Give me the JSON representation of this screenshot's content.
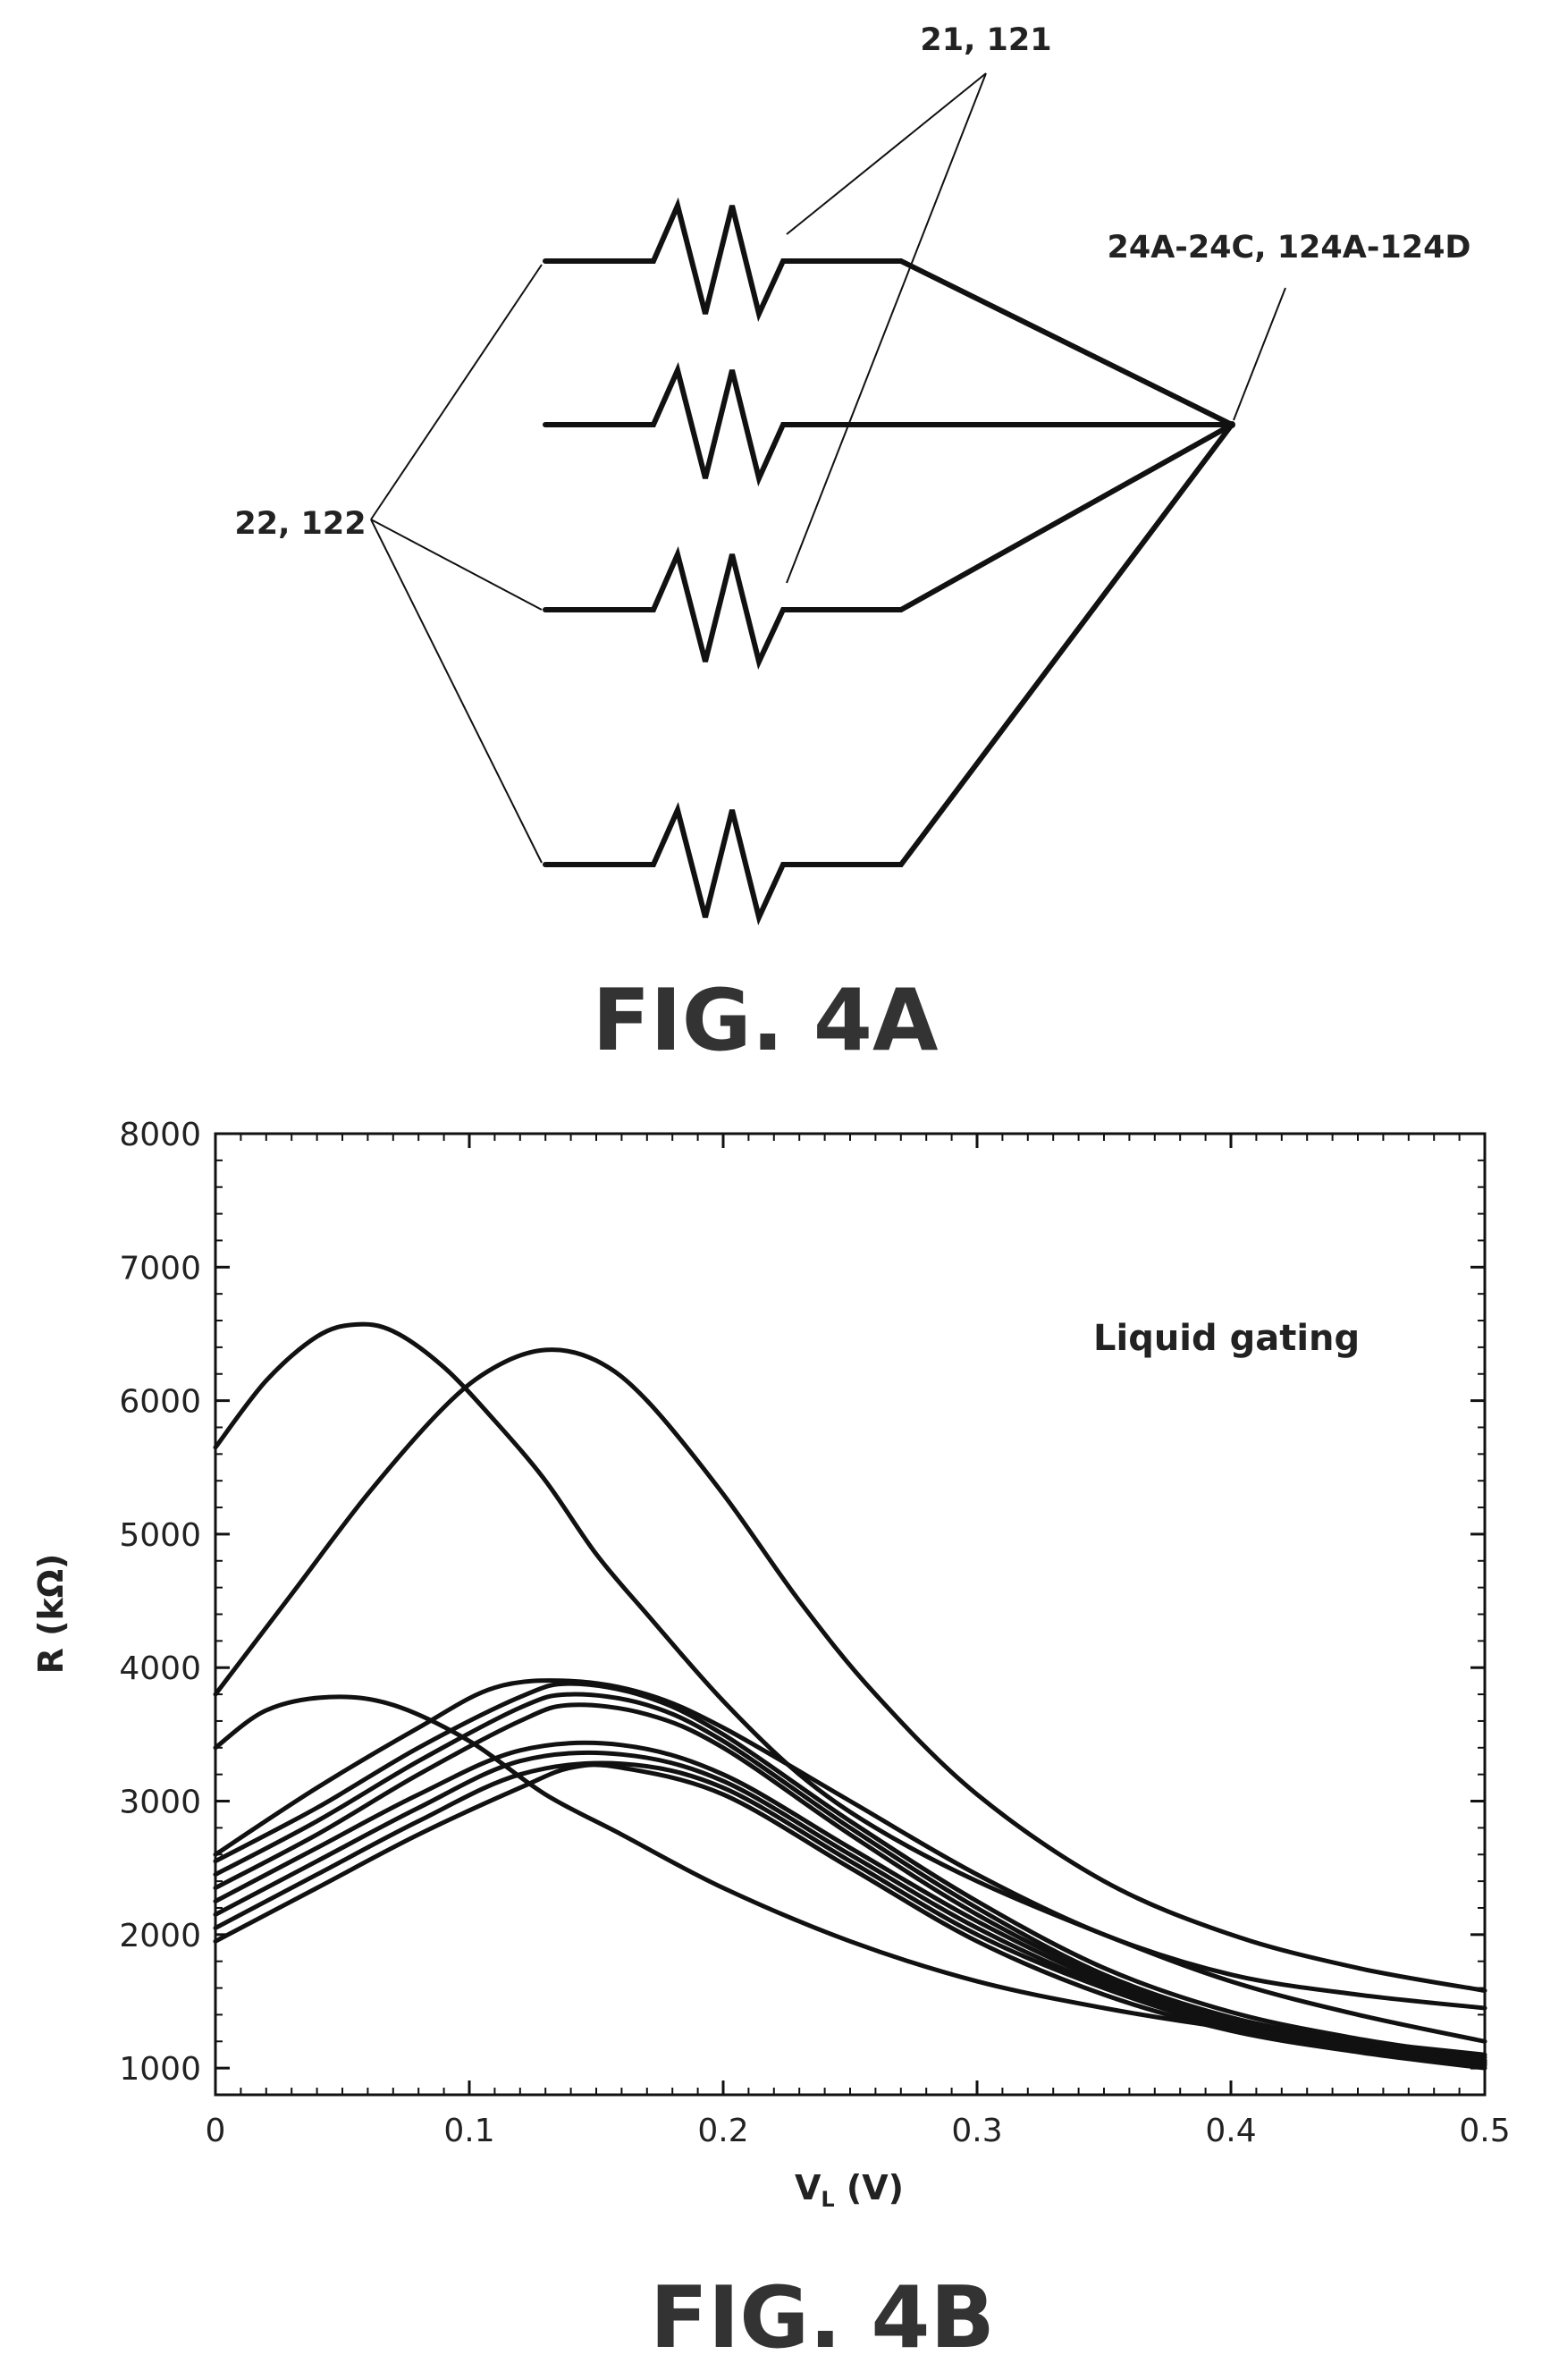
{
  "fig4a": {
    "label_resistors": "21, 121",
    "label_nodes": "24A-24C, 124A-124D",
    "label_leads": "22, 122",
    "caption": "FIG. 4A"
  },
  "fig4b": {
    "caption": "FIG. 4B",
    "annotation": "Liquid gating"
  },
  "chart_data": {
    "type": "line",
    "title": "",
    "xlabel": "V_L (V)",
    "xlabel_main": "V",
    "xlabel_sub": "L",
    "xlabel_unit": " (V)",
    "ylabel": "R (kΩ)",
    "xlim": [
      0,
      0.5
    ],
    "ylim": [
      800,
      8000
    ],
    "xticks": [
      0,
      0.1,
      0.2,
      0.3,
      0.4,
      0.5
    ],
    "xtick_labels": [
      "0",
      "0.1",
      "0.2",
      "0.3",
      "0.4",
      "0.5"
    ],
    "yticks": [
      1000,
      2000,
      3000,
      4000,
      5000,
      6000,
      7000,
      8000
    ],
    "ytick_labels": [
      "1000",
      "2000",
      "3000",
      "4000",
      "5000",
      "6000",
      "7000",
      "8000"
    ],
    "grid": false,
    "legend": "none",
    "series": [
      {
        "x": [
          0,
          0.02,
          0.04,
          0.055,
          0.07,
          0.09,
          0.11,
          0.13,
          0.15,
          0.17,
          0.2,
          0.23,
          0.26,
          0.3,
          0.35,
          0.4,
          0.45,
          0.5
        ],
        "values": [
          5650,
          6150,
          6480,
          6570,
          6520,
          6250,
          5850,
          5400,
          4850,
          4400,
          3750,
          3200,
          2800,
          2400,
          2000,
          1650,
          1400,
          1200
        ]
      },
      {
        "x": [
          0,
          0.03,
          0.06,
          0.09,
          0.11,
          0.13,
          0.15,
          0.17,
          0.2,
          0.23,
          0.26,
          0.3,
          0.35,
          0.4,
          0.45,
          0.5
        ],
        "values": [
          3800,
          4550,
          5300,
          5950,
          6250,
          6380,
          6300,
          6000,
          5300,
          4500,
          3800,
          3050,
          2400,
          2000,
          1750,
          1580
        ]
      },
      {
        "x": [
          0,
          0.02,
          0.045,
          0.07,
          0.1,
          0.13,
          0.16,
          0.2,
          0.25,
          0.3,
          0.35,
          0.4,
          0.45,
          0.5
        ],
        "values": [
          3400,
          3680,
          3780,
          3720,
          3450,
          3050,
          2750,
          2350,
          1950,
          1650,
          1450,
          1300,
          1200,
          1100
        ]
      },
      {
        "x": [
          0,
          0.04,
          0.08,
          0.11,
          0.14,
          0.17,
          0.2,
          0.25,
          0.3,
          0.35,
          0.4,
          0.45,
          0.5
        ],
        "values": [
          2600,
          3100,
          3550,
          3850,
          3900,
          3800,
          3550,
          3000,
          2450,
          2000,
          1700,
          1550,
          1450
        ]
      },
      {
        "x": [
          0,
          0.04,
          0.08,
          0.12,
          0.14,
          0.17,
          0.2,
          0.25,
          0.3,
          0.35,
          0.4,
          0.45,
          0.5
        ],
        "values": [
          2550,
          2950,
          3400,
          3780,
          3880,
          3780,
          3500,
          2850,
          2250,
          1750,
          1420,
          1220,
          1080
        ]
      },
      {
        "x": [
          0,
          0.04,
          0.08,
          0.12,
          0.14,
          0.17,
          0.2,
          0.25,
          0.3,
          0.35,
          0.4,
          0.45,
          0.5
        ],
        "values": [
          2450,
          2850,
          3300,
          3700,
          3800,
          3720,
          3450,
          2800,
          2200,
          1700,
          1380,
          1200,
          1060
        ]
      },
      {
        "x": [
          0,
          0.04,
          0.08,
          0.12,
          0.14,
          0.17,
          0.2,
          0.25,
          0.3,
          0.35,
          0.4,
          0.45,
          0.5
        ],
        "values": [
          2350,
          2750,
          3200,
          3600,
          3720,
          3650,
          3400,
          2750,
          2150,
          1680,
          1360,
          1180,
          1050
        ]
      },
      {
        "x": [
          0,
          0.04,
          0.08,
          0.12,
          0.16,
          0.2,
          0.25,
          0.3,
          0.35,
          0.4,
          0.45,
          0.5
        ],
        "values": [
          2250,
          2650,
          3050,
          3380,
          3420,
          3200,
          2650,
          2100,
          1650,
          1340,
          1170,
          1040
        ]
      },
      {
        "x": [
          0,
          0.04,
          0.08,
          0.12,
          0.16,
          0.2,
          0.25,
          0.3,
          0.35,
          0.4,
          0.45,
          0.5
        ],
        "values": [
          2150,
          2550,
          2950,
          3300,
          3350,
          3150,
          2600,
          2050,
          1620,
          1320,
          1150,
          1030
        ]
      },
      {
        "x": [
          0,
          0.04,
          0.08,
          0.12,
          0.16,
          0.2,
          0.25,
          0.3,
          0.35,
          0.4,
          0.45,
          0.5
        ],
        "values": [
          2050,
          2450,
          2850,
          3200,
          3280,
          3100,
          2550,
          2000,
          1600,
          1300,
          1140,
          1020
        ]
      },
      {
        "x": [
          0,
          0.04,
          0.08,
          0.12,
          0.14,
          0.16,
          0.2,
          0.25,
          0.3,
          0.35,
          0.4,
          0.45,
          0.5
        ],
        "values": [
          1950,
          2350,
          2750,
          3100,
          3250,
          3250,
          3050,
          2500,
          1950,
          1550,
          1280,
          1120,
          1000
        ]
      }
    ]
  }
}
